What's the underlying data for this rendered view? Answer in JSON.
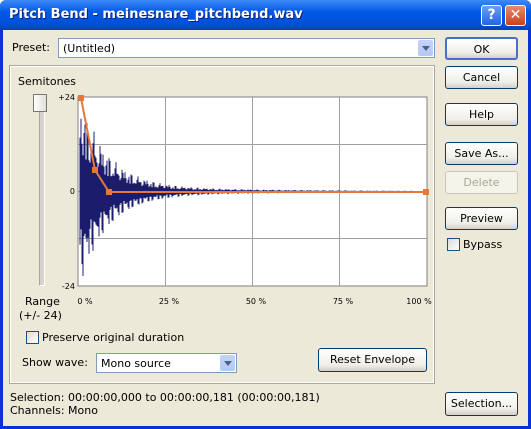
{
  "window": {
    "title": "Pitch Bend - meinesnare_pitchbend.wav"
  },
  "preset": {
    "label": "Preset:",
    "value": "(Untitled)"
  },
  "buttons": {
    "ok": "OK",
    "cancel": "Cancel",
    "help": "Help",
    "save_as": "Save As...",
    "delete": "Delete",
    "preview": "Preview",
    "reset_envelope": "Reset Envelope",
    "selection": "Selection..."
  },
  "bypass": "Bypass",
  "envelope": {
    "label": "Semitones",
    "y_labels": [
      "+24",
      "0",
      "-24"
    ],
    "x_labels": [
      "0 %",
      "25 %",
      "50 %",
      "75 %",
      "100 %"
    ],
    "range_label": [
      "Range",
      "(+/- 24)"
    ]
  },
  "preserve_duration": "Preserve original duration",
  "show_wave": {
    "label": "Show wave:",
    "value": "Mono source"
  },
  "status": {
    "selection_label": "Selection:",
    "selection_value": "00:00:00,000 to 00:00:00,181 (00:00:00,181)",
    "channels_label": "Channels:",
    "channels_value": "Mono"
  }
}
